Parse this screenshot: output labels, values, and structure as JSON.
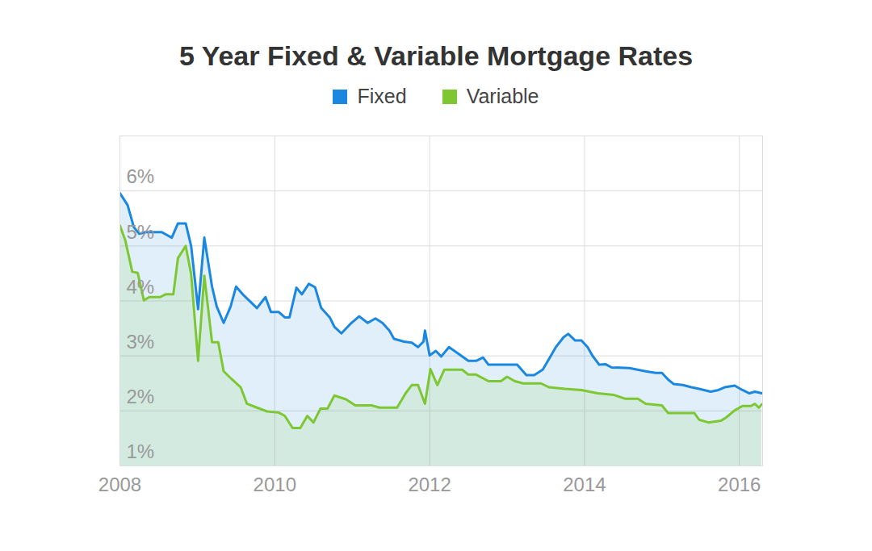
{
  "chart_data": {
    "type": "area",
    "title": "5 Year Fixed & Variable Mortgage Rates",
    "legend": "top",
    "grid": true,
    "xlim": [
      2008,
      2016.3
    ],
    "xticks": [
      2008,
      2010,
      2012,
      2014,
      2016
    ],
    "ylim": [
      1,
      7
    ],
    "yticks": [
      {
        "value": 1,
        "label": "1%"
      },
      {
        "value": 2,
        "label": "2%"
      },
      {
        "value": 3,
        "label": "3%"
      },
      {
        "value": 4,
        "label": "4%"
      },
      {
        "value": 5,
        "label": "5%"
      },
      {
        "value": 6,
        "label": "6%"
      }
    ],
    "series": [
      {
        "name": "Fixed",
        "color": "#1a87e0",
        "x": [
          2008.0,
          2008.1,
          2008.18,
          2008.25,
          2008.33,
          2008.54,
          2008.67,
          2008.75,
          2008.85,
          2008.92,
          2009.01,
          2009.09,
          2009.19,
          2009.25,
          2009.34,
          2009.43,
          2009.5,
          2009.6,
          2009.77,
          2009.88,
          2009.95,
          2010.05,
          2010.13,
          2010.19,
          2010.28,
          2010.35,
          2010.44,
          2010.52,
          2010.6,
          2010.71,
          2010.77,
          2010.86,
          2010.99,
          2011.09,
          2011.2,
          2011.3,
          2011.39,
          2011.48,
          2011.54,
          2011.67,
          2011.77,
          2011.85,
          2011.92,
          2011.94,
          2012.0,
          2012.08,
          2012.15,
          2012.25,
          2012.35,
          2012.5,
          2012.6,
          2012.69,
          2012.76,
          2012.92,
          2013.13,
          2013.25,
          2013.35,
          2013.46,
          2013.54,
          2013.63,
          2013.73,
          2013.79,
          2013.88,
          2013.96,
          2014.04,
          2014.1,
          2014.19,
          2014.27,
          2014.35,
          2014.58,
          2014.79,
          2014.92,
          2015.0,
          2015.08,
          2015.15,
          2015.27,
          2015.38,
          2015.48,
          2015.63,
          2015.73,
          2015.81,
          2015.94,
          2016.04,
          2016.13,
          2016.2,
          2016.29
        ],
        "values": [
          5.96,
          5.74,
          5.34,
          5.22,
          5.25,
          5.25,
          5.15,
          5.41,
          5.41,
          5.0,
          3.85,
          5.15,
          4.26,
          3.9,
          3.6,
          3.9,
          4.26,
          4.1,
          3.87,
          4.07,
          3.8,
          3.8,
          3.7,
          3.7,
          4.24,
          4.12,
          4.31,
          4.25,
          3.87,
          3.7,
          3.53,
          3.41,
          3.6,
          3.72,
          3.6,
          3.68,
          3.6,
          3.46,
          3.31,
          3.26,
          3.24,
          3.16,
          3.26,
          3.46,
          3.01,
          3.09,
          2.99,
          3.16,
          3.06,
          2.91,
          2.91,
          2.97,
          2.84,
          2.84,
          2.84,
          2.65,
          2.65,
          2.75,
          2.94,
          3.16,
          3.34,
          3.4,
          3.28,
          3.28,
          3.16,
          3.01,
          2.84,
          2.85,
          2.79,
          2.78,
          2.72,
          2.69,
          2.69,
          2.57,
          2.49,
          2.47,
          2.43,
          2.4,
          2.35,
          2.38,
          2.43,
          2.46,
          2.38,
          2.32,
          2.35,
          2.32
        ]
      },
      {
        "name": "Variable",
        "color": "#7dc832",
        "x": [
          2008.0,
          2008.07,
          2008.16,
          2008.23,
          2008.31,
          2008.38,
          2008.52,
          2008.59,
          2008.69,
          2008.75,
          2008.85,
          2008.92,
          2009.01,
          2009.09,
          2009.19,
          2009.27,
          2009.34,
          2009.45,
          2009.56,
          2009.64,
          2009.77,
          2009.9,
          2010.05,
          2010.13,
          2010.23,
          2010.33,
          2010.42,
          2010.5,
          2010.59,
          2010.68,
          2010.77,
          2010.92,
          2011.04,
          2011.25,
          2011.35,
          2011.58,
          2011.69,
          2011.77,
          2011.85,
          2011.94,
          2012.01,
          2012.1,
          2012.19,
          2012.42,
          2012.5,
          2012.6,
          2012.76,
          2012.92,
          2013.0,
          2013.1,
          2013.21,
          2013.44,
          2013.54,
          2013.75,
          2013.96,
          2014.17,
          2014.38,
          2014.53,
          2014.69,
          2014.79,
          2015.0,
          2015.08,
          2015.26,
          2015.42,
          2015.48,
          2015.6,
          2015.76,
          2015.83,
          2015.94,
          2016.04,
          2016.15,
          2016.2,
          2016.25,
          2016.29
        ],
        "values": [
          5.37,
          5.1,
          4.53,
          4.51,
          4.01,
          4.07,
          4.07,
          4.12,
          4.12,
          4.78,
          5.0,
          4.49,
          2.91,
          4.46,
          3.25,
          3.25,
          2.72,
          2.57,
          2.43,
          2.13,
          2.06,
          1.99,
          1.97,
          1.91,
          1.69,
          1.69,
          1.91,
          1.79,
          2.04,
          2.04,
          2.28,
          2.21,
          2.1,
          2.1,
          2.06,
          2.06,
          2.32,
          2.47,
          2.47,
          2.13,
          2.76,
          2.47,
          2.75,
          2.75,
          2.66,
          2.66,
          2.54,
          2.54,
          2.62,
          2.54,
          2.5,
          2.5,
          2.43,
          2.4,
          2.38,
          2.32,
          2.29,
          2.22,
          2.22,
          2.13,
          2.1,
          1.96,
          1.96,
          1.96,
          1.84,
          1.79,
          1.82,
          1.88,
          2.01,
          2.09,
          2.09,
          2.13,
          2.06,
          2.12
        ]
      }
    ]
  }
}
